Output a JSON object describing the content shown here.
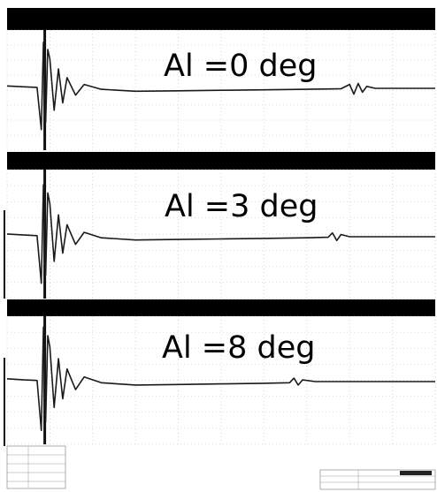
{
  "chart_data": [
    {
      "type": "line",
      "annotation": "Al =0 deg",
      "grid": true,
      "series": [
        {
          "x": [
            0.0,
            0.04,
            0.07,
            0.08,
            0.085,
            0.09,
            0.095,
            0.1,
            0.11,
            0.12,
            0.13,
            0.14,
            0.16,
            0.18,
            0.22,
            0.3,
            0.4,
            0.5,
            0.6,
            0.7,
            0.78,
            0.8,
            0.81,
            0.82,
            0.83,
            0.84,
            0.86,
            0.9,
            1.0
          ],
          "y": [
            0.05,
            0.03,
            0.02,
            -0.85,
            0.95,
            -0.7,
            0.8,
            0.6,
            -0.45,
            0.4,
            -0.3,
            0.22,
            -0.14,
            0.08,
            -0.02,
            -0.06,
            -0.05,
            -0.04,
            -0.03,
            -0.02,
            -0.01,
            0.08,
            -0.12,
            0.1,
            -0.08,
            0.04,
            0.0,
            0.0,
            0.0
          ]
        }
      ]
    },
    {
      "type": "line",
      "annotation": "Al =3 deg",
      "grid": true,
      "series": [
        {
          "x": [
            0.0,
            0.04,
            0.07,
            0.08,
            0.085,
            0.09,
            0.095,
            0.1,
            0.11,
            0.12,
            0.13,
            0.14,
            0.16,
            0.18,
            0.22,
            0.3,
            0.4,
            0.5,
            0.6,
            0.7,
            0.75,
            0.76,
            0.77,
            0.78,
            0.8,
            0.85,
            0.9,
            1.0
          ],
          "y": [
            0.05,
            0.03,
            0.02,
            -0.85,
            0.95,
            -0.7,
            0.8,
            0.6,
            -0.45,
            0.4,
            -0.3,
            0.22,
            -0.14,
            0.08,
            -0.02,
            -0.06,
            -0.05,
            -0.04,
            -0.03,
            -0.02,
            -0.01,
            0.07,
            -0.07,
            0.04,
            0.0,
            0.0,
            0.0,
            0.0
          ]
        }
      ]
    },
    {
      "type": "line",
      "annotation": "Al =8 deg",
      "grid": true,
      "series": [
        {
          "x": [
            0.0,
            0.04,
            0.07,
            0.08,
            0.085,
            0.09,
            0.095,
            0.1,
            0.11,
            0.12,
            0.13,
            0.14,
            0.16,
            0.18,
            0.22,
            0.3,
            0.4,
            0.5,
            0.6,
            0.66,
            0.67,
            0.68,
            0.69,
            0.72,
            0.8,
            0.9,
            1.0
          ],
          "y": [
            0.05,
            0.03,
            0.02,
            -0.85,
            0.95,
            -0.7,
            0.8,
            0.6,
            -0.45,
            0.4,
            -0.3,
            0.22,
            -0.14,
            0.08,
            -0.02,
            -0.06,
            -0.05,
            -0.04,
            -0.03,
            -0.02,
            0.06,
            -0.06,
            0.03,
            0.0,
            0.0,
            0.0,
            0.0
          ]
        }
      ]
    }
  ],
  "colors": {
    "trace": "#1a1a1a",
    "grid": "#bdbdbd",
    "band": "#000000",
    "background": "#ffffff"
  }
}
